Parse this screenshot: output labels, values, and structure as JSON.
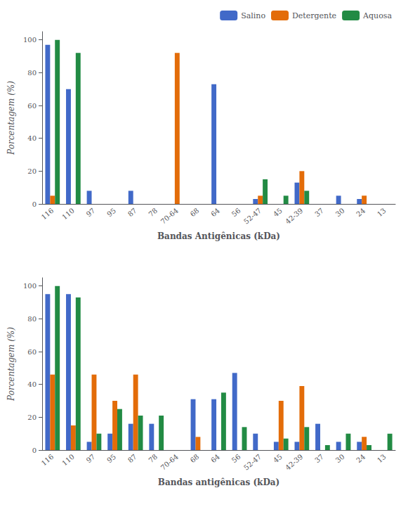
{
  "chart_data": [
    {
      "type": "bar",
      "categories": [
        "116",
        "110",
        "97",
        "95",
        "87",
        "78",
        "70-64",
        "68",
        "64",
        "56",
        "52-47",
        "45",
        "42-39",
        "37",
        "30",
        "24",
        "13"
      ],
      "series": [
        {
          "name": "Salino",
          "color": "#4169C8",
          "values": [
            97,
            70,
            8,
            0,
            8,
            0,
            0,
            0,
            73,
            0,
            3,
            0,
            13,
            0,
            5,
            3,
            0
          ]
        },
        {
          "name": "Detergente",
          "color": "#E36C09",
          "values": [
            5,
            0,
            0,
            0,
            0,
            0,
            92,
            0,
            0,
            0,
            5,
            0,
            20,
            0,
            0,
            5,
            0
          ]
        },
        {
          "name": "Aquosa",
          "color": "#228B44",
          "values": [
            100,
            92,
            0,
            0,
            0,
            0,
            0,
            0,
            0,
            0,
            15,
            5,
            8,
            0,
            0,
            0,
            0
          ]
        }
      ],
      "x_label": "Bandas Antigênicas (kDa)",
      "y_label": "Porcentagem (%)",
      "ylim": [
        0,
        105
      ],
      "yticks": [
        0,
        20,
        40,
        60,
        80,
        100
      ],
      "grid": false,
      "legend": "upper right"
    },
    {
      "type": "bar",
      "categories": [
        "116",
        "110",
        "97",
        "95",
        "87",
        "78",
        "70-64",
        "68",
        "64",
        "56",
        "52-47",
        "45",
        "42-39",
        "37",
        "30",
        "24",
        "13"
      ],
      "series": [
        {
          "name": "Salino",
          "color": "#4169C8",
          "values": [
            95,
            95,
            5,
            10,
            16,
            16,
            0,
            31,
            31,
            47,
            10,
            5,
            5,
            16,
            5,
            5,
            0
          ]
        },
        {
          "name": "Detergente",
          "color": "#E36C09",
          "values": [
            46,
            15,
            46,
            30,
            46,
            0,
            0,
            8,
            0,
            0,
            0,
            30,
            39,
            0,
            0,
            8,
            0
          ]
        },
        {
          "name": "Aquosa",
          "color": "#228B44",
          "values": [
            100,
            93,
            10,
            25,
            21,
            21,
            0,
            0,
            35,
            14,
            0,
            7,
            14,
            3,
            10,
            3,
            10
          ]
        }
      ],
      "x_label": "Bandas antigênicas (kDa)",
      "y_label": "Porcentagem (%)",
      "ylim": [
        0,
        105
      ],
      "yticks": [
        0,
        20,
        40,
        60,
        80,
        100
      ],
      "grid": false
    }
  ]
}
